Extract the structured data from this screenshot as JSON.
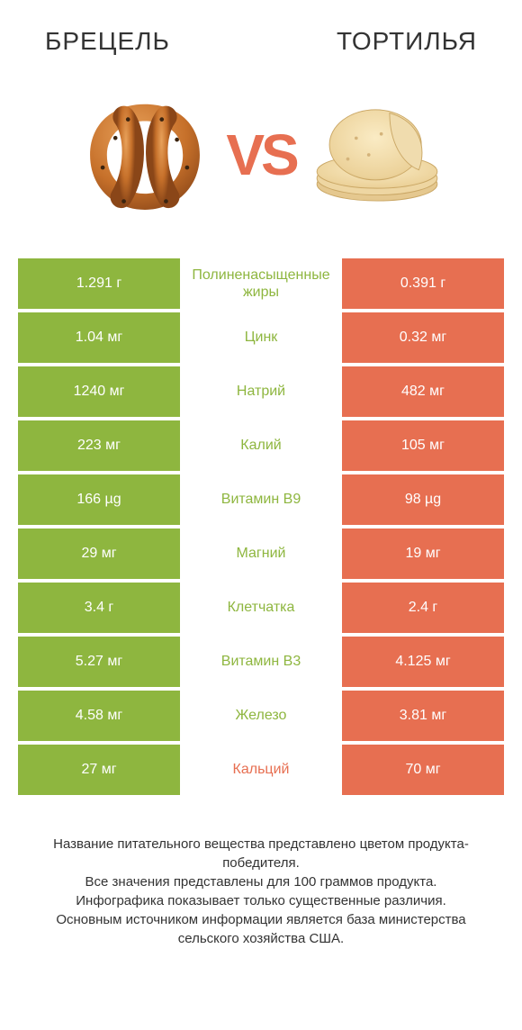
{
  "colors": {
    "green": "#8eb63f",
    "orange": "#e76f51",
    "text": "#333333",
    "white": "#ffffff"
  },
  "header": {
    "left": "БРЕЦЕЛЬ",
    "right": "ТОРТИЛЬЯ",
    "vs": "VS"
  },
  "rows": [
    {
      "label": "Полиненасыщенные жиры",
      "left": "1.291 г",
      "right": "0.391 г",
      "winner": "left"
    },
    {
      "label": "Цинк",
      "left": "1.04 мг",
      "right": "0.32 мг",
      "winner": "left"
    },
    {
      "label": "Натрий",
      "left": "1240 мг",
      "right": "482 мг",
      "winner": "left"
    },
    {
      "label": "Калий",
      "left": "223 мг",
      "right": "105 мг",
      "winner": "left"
    },
    {
      "label": "Витамин B9",
      "left": "166 µg",
      "right": "98 µg",
      "winner": "left"
    },
    {
      "label": "Магний",
      "left": "29 мг",
      "right": "19 мг",
      "winner": "left"
    },
    {
      "label": "Клетчатка",
      "left": "3.4 г",
      "right": "2.4 г",
      "winner": "left"
    },
    {
      "label": "Витамин B3",
      "left": "5.27 мг",
      "right": "4.125 мг",
      "winner": "left"
    },
    {
      "label": "Железо",
      "left": "4.58 мг",
      "right": "3.81 мг",
      "winner": "left"
    },
    {
      "label": "Кальций",
      "left": "27 мг",
      "right": "70 мг",
      "winner": "right"
    }
  ],
  "footer": {
    "line1": "Название питательного вещества представлено цветом продукта-победителя.",
    "line2": "Все значения представлены для 100 граммов продукта.",
    "line3": "Инфографика показывает только существенные различия.",
    "line4": "Основным источником информации является база министерства сельского хозяйства США."
  }
}
